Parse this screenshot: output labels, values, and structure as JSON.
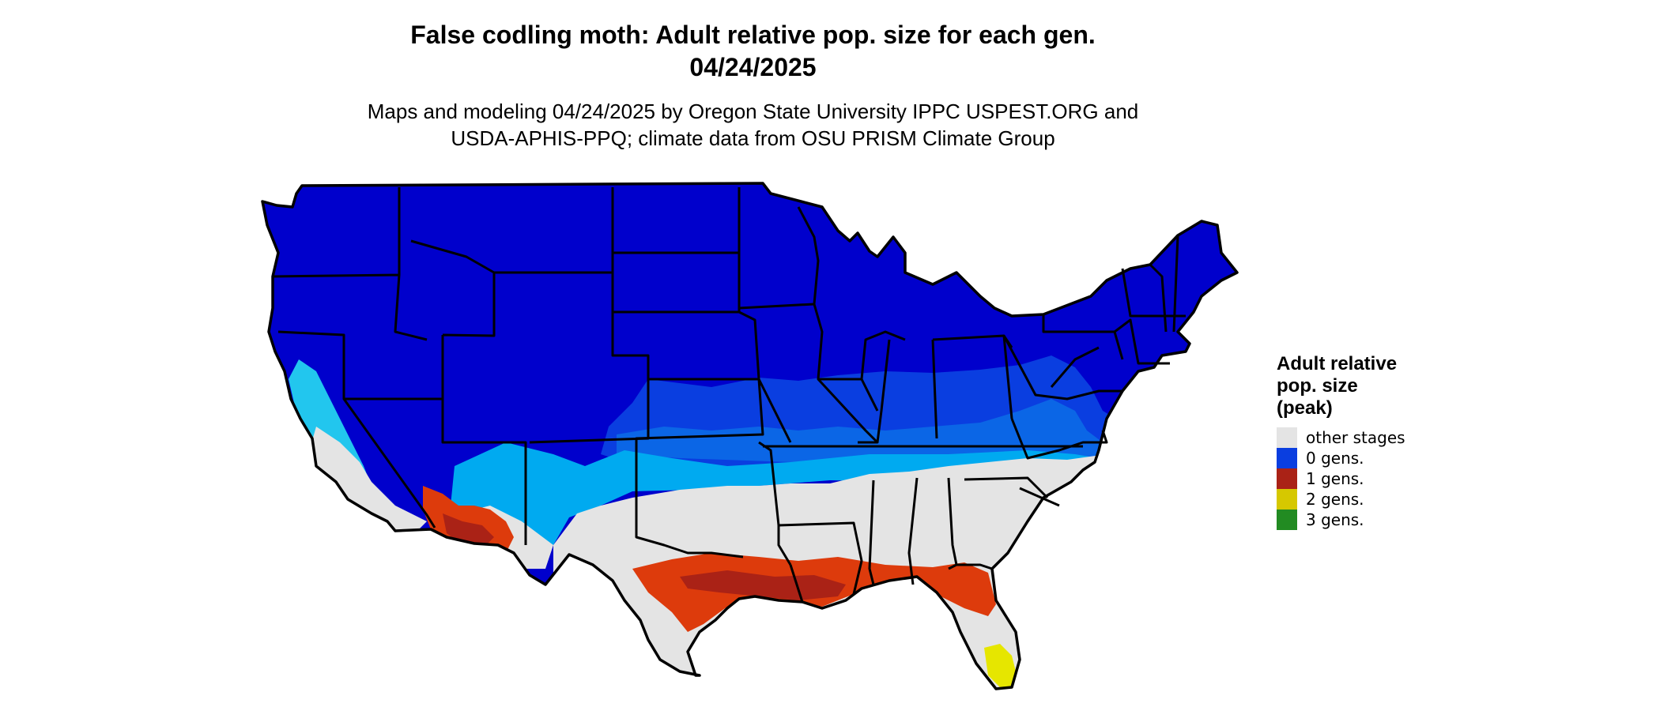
{
  "title": {
    "line1": "False codling moth: Adult relative pop. size for each gen.",
    "line2": "04/24/2025"
  },
  "subtitle": {
    "line1": "Maps and modeling 04/24/2025 by Oregon State University IPPC USPEST.ORG and",
    "line2": "USDA-APHIS-PPQ; climate data from OSU PRISM Climate Group"
  },
  "colors": {
    "other_stages": "#e4e4e4",
    "gen0_dark": "#0000cc",
    "gen0_mid": "#0a3ee0",
    "gen0_light1": "#0b66e6",
    "gen0_light2": "#00aaf0",
    "gen0_light3": "#22c6ee",
    "gen1_red": "#aa2216",
    "gen1_orange": "#dd3b0c",
    "gen2_yellow": "#e6e600",
    "gen3_green": "#228b22",
    "borders": "#000000"
  },
  "legend": {
    "title_lines": [
      "Adult relative",
      "pop. size",
      "(peak)"
    ],
    "items": [
      {
        "label": "other stages",
        "color": "#e4e4e4"
      },
      {
        "label": "0 gens.",
        "color": "#0a3ee0"
      },
      {
        "label": "1 gens.",
        "color": "#aa2216"
      },
      {
        "label": "2 gens.",
        "color": "#d6c800"
      },
      {
        "label": "3 gens.",
        "color": "#228b22"
      }
    ]
  }
}
